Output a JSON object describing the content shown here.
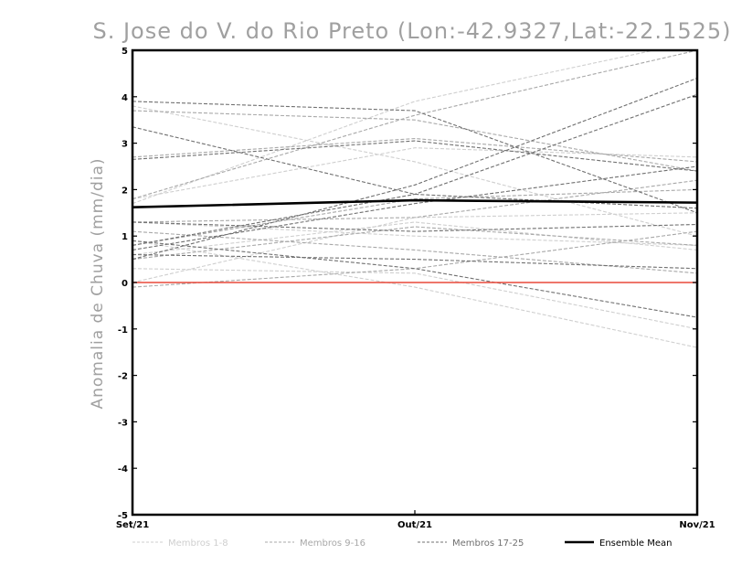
{
  "chart_data": {
    "type": "line",
    "title": "S. Jose do V. do Rio Preto (Lon:-42.9327,Lat:-22.1525)",
    "xlabel": "",
    "ylabel": "Anomalia de Chuva (mm/dia)",
    "categories": [
      "Set/21",
      "Out/21",
      "Nov/21"
    ],
    "ylim": [
      -5,
      5
    ],
    "yticks": [
      -5,
      -4,
      -3,
      -2,
      -1,
      0,
      1,
      2,
      3,
      4,
      5
    ],
    "grid": false,
    "reference_line": {
      "y": 0,
      "color": "#e8483a"
    },
    "legend_position": "bottom",
    "groups": [
      {
        "name": "Membros 1-8",
        "color": "#cfcfcf",
        "style": "dashed"
      },
      {
        "name": "Membros 9-16",
        "color": "#a8a8a8",
        "style": "dashed"
      },
      {
        "name": "Membros 17-25",
        "color": "#707070",
        "style": "dashed"
      },
      {
        "name": "Ensemble Mean",
        "color": "#000000",
        "style": "solid"
      }
    ],
    "series": [
      {
        "group": 0,
        "values": [
          3.8,
          2.6,
          1.0
        ]
      },
      {
        "group": 0,
        "values": [
          1.7,
          3.9,
          5.2
        ]
      },
      {
        "group": 0,
        "values": [
          1.3,
          1.0,
          0.8
        ]
      },
      {
        "group": 0,
        "values": [
          0.9,
          -0.1,
          -1.4
        ]
      },
      {
        "group": 0,
        "values": [
          0.6,
          1.3,
          0.7
        ]
      },
      {
        "group": 0,
        "values": [
          0.3,
          0.2,
          -1.0
        ]
      },
      {
        "group": 0,
        "values": [
          1.8,
          2.9,
          2.7
        ]
      },
      {
        "group": 0,
        "values": [
          0.0,
          1.4,
          1.5
        ]
      },
      {
        "group": 1,
        "values": [
          3.7,
          3.5,
          2.4
        ]
      },
      {
        "group": 1,
        "values": [
          2.7,
          3.1,
          2.6
        ]
      },
      {
        "group": 1,
        "values": [
          1.8,
          3.6,
          5.0
        ]
      },
      {
        "group": 1,
        "values": [
          1.3,
          1.4,
          2.2
        ]
      },
      {
        "group": 1,
        "values": [
          0.8,
          1.8,
          2.0
        ]
      },
      {
        "group": 1,
        "values": [
          -0.1,
          0.3,
          1.1
        ]
      },
      {
        "group": 1,
        "values": [
          0.5,
          1.2,
          0.8
        ]
      },
      {
        "group": 1,
        "values": [
          1.1,
          0.7,
          0.2
        ]
      },
      {
        "group": 2,
        "values": [
          3.9,
          3.7,
          1.5
        ]
      },
      {
        "group": 2,
        "values": [
          3.35,
          1.9,
          1.6
        ]
      },
      {
        "group": 2,
        "values": [
          0.5,
          2.1,
          4.4
        ]
      },
      {
        "group": 2,
        "values": [
          0.8,
          1.9,
          4.05
        ]
      },
      {
        "group": 2,
        "values": [
          2.65,
          3.05,
          2.4
        ]
      },
      {
        "group": 2,
        "values": [
          0.7,
          1.7,
          2.5
        ]
      },
      {
        "group": 2,
        "values": [
          1.3,
          1.1,
          1.25
        ]
      },
      {
        "group": 2,
        "values": [
          0.6,
          0.5,
          0.3
        ]
      },
      {
        "group": 2,
        "values": [
          0.9,
          0.3,
          -0.75
        ]
      },
      {
        "group": 3,
        "values": [
          1.62,
          1.77,
          1.72
        ]
      }
    ]
  }
}
